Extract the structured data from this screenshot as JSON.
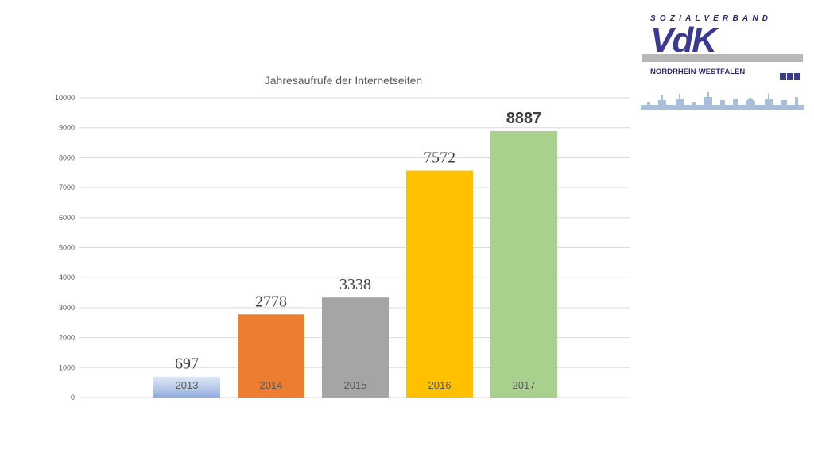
{
  "logo": {
    "top_text": "SOZIALVERBAND",
    "brand": "VdK",
    "region": "NORDRHEIN-WESTFALEN",
    "color": "#3c3a8c"
  },
  "chart_data": {
    "type": "bar",
    "title": "Jahresaufrufe der Internetseiten",
    "categories": [
      "2013",
      "2014",
      "2015",
      "2016",
      "2017"
    ],
    "values": [
      697,
      2778,
      3338,
      7572,
      8887
    ],
    "colors": [
      "#8eaadb",
      "#ed7d31",
      "#a5a5a5",
      "#ffc000",
      "#a9d18e"
    ],
    "ylim": [
      0,
      10000
    ],
    "yticks": [
      0,
      1000,
      2000,
      3000,
      4000,
      5000,
      6000,
      7000,
      8000,
      9000,
      10000
    ],
    "grid": true,
    "xlabel": "",
    "ylabel": ""
  }
}
